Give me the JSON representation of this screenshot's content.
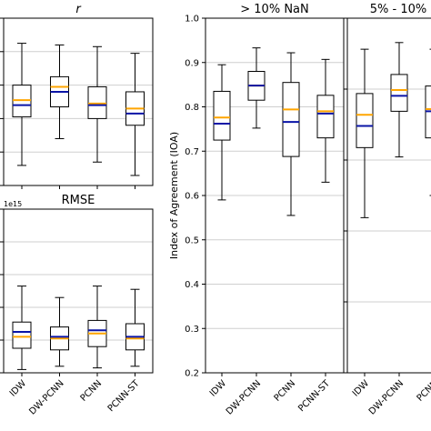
{
  "chart_data": [
    {
      "id": "r",
      "type": "box",
      "title": "r",
      "categories": [
        "IDW",
        "DW-PCNN",
        "PCNN",
        "PCNN-ST"
      ],
      "ylim": [
        0.0,
        1.0
      ],
      "show_tick_labels": false,
      "boxes": [
        {
          "whisker_low": 0.12,
          "q1": 0.41,
          "median": 0.48,
          "mean": 0.51,
          "q3": 0.6,
          "whisker_high": 0.85
        },
        {
          "whisker_low": 0.28,
          "q1": 0.47,
          "median": 0.56,
          "mean": 0.59,
          "q3": 0.65,
          "whisker_high": 0.84
        },
        {
          "whisker_low": 0.14,
          "q1": 0.4,
          "median": 0.48,
          "mean": 0.49,
          "q3": 0.59,
          "whisker_high": 0.83
        },
        {
          "whisker_low": 0.06,
          "q1": 0.36,
          "median": 0.43,
          "mean": 0.46,
          "q3": 0.56,
          "whisker_high": 0.79
        }
      ],
      "median_color": "#0a14a6",
      "mean_color": "#ffa500",
      "grid": true
    },
    {
      "id": "rmse",
      "type": "box",
      "title": "RMSE",
      "offset_label": "1e15",
      "categories": [
        "IDW",
        "DW-PCNN",
        "PCNN",
        "PCNN-ST"
      ],
      "ylim": [
        0.0,
        1.0
      ],
      "show_tick_labels": false,
      "boxes": [
        {
          "whisker_low": 0.02,
          "q1": 0.15,
          "median": 0.25,
          "mean": 0.22,
          "q3": 0.31,
          "whisker_high": 0.53
        },
        {
          "whisker_low": 0.04,
          "q1": 0.14,
          "median": 0.22,
          "mean": 0.21,
          "q3": 0.28,
          "whisker_high": 0.46
        },
        {
          "whisker_low": 0.03,
          "q1": 0.16,
          "median": 0.26,
          "mean": 0.24,
          "q3": 0.32,
          "whisker_high": 0.53
        },
        {
          "whisker_low": 0.04,
          "q1": 0.14,
          "median": 0.22,
          "mean": 0.21,
          "q3": 0.3,
          "whisker_high": 0.51
        }
      ],
      "median_color": "#0a14a6",
      "mean_color": "#ffa500",
      "grid": true
    },
    {
      "id": "nan10",
      "type": "box",
      "title": "> 10% NaN",
      "ylabel": "Index of Agreement (IOA)",
      "categories": [
        "IDW",
        "DW-PCNN",
        "PCNN",
        "PCNN-ST"
      ],
      "ylim": [
        0.2,
        1.0
      ],
      "yticks": [
        "0.2",
        "0.3",
        "0.4",
        "0.5",
        "0.6",
        "0.7",
        "0.8",
        "0.9",
        "1.0"
      ],
      "boxes": [
        {
          "whisker_low": 0.59,
          "q1": 0.725,
          "median": 0.762,
          "mean": 0.776,
          "q3": 0.835,
          "whisker_high": 0.895
        },
        {
          "whisker_low": 0.752,
          "q1": 0.815,
          "median": 0.848,
          "mean": 0.848,
          "q3": 0.88,
          "whisker_high": 0.933
        },
        {
          "whisker_low": 0.555,
          "q1": 0.688,
          "median": 0.766,
          "mean": 0.794,
          "q3": 0.855,
          "whisker_high": 0.922
        },
        {
          "whisker_low": 0.63,
          "q1": 0.73,
          "median": 0.785,
          "mean": 0.79,
          "q3": 0.826,
          "whisker_high": 0.907
        }
      ],
      "median_color": "#0a14a6",
      "mean_color": "#ffa500",
      "grid": true
    },
    {
      "id": "nan5_10",
      "type": "box",
      "title": "5% - 10%",
      "categories": [
        "IDW",
        "DW-PCNN",
        "PCNN"
      ],
      "ylim": [
        0.2,
        1.0
      ],
      "show_tick_labels": false,
      "boxes": [
        {
          "whisker_low": 0.55,
          "q1": 0.708,
          "median": 0.757,
          "mean": 0.782,
          "q3": 0.83,
          "whisker_high": 0.93
        },
        {
          "whisker_low": 0.687,
          "q1": 0.79,
          "median": 0.825,
          "mean": 0.838,
          "q3": 0.873,
          "whisker_high": 0.945
        },
        {
          "whisker_low": 0.6,
          "q1": 0.73,
          "median": 0.79,
          "mean": 0.795,
          "q3": 0.847,
          "whisker_high": 0.93
        }
      ],
      "median_color": "#0a14a6",
      "mean_color": "#ffa500",
      "grid": true
    }
  ]
}
